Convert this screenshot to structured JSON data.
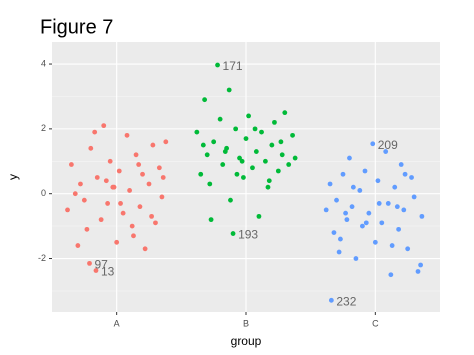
{
  "chart_data": {
    "type": "scatter",
    "title": "Figure 7",
    "xlabel": "group",
    "ylabel": "y",
    "xlim": [
      0.5,
      3.5
    ],
    "ylim": [
      -3.65,
      4.68
    ],
    "xticks": [
      {
        "value": 1,
        "label": "A"
      },
      {
        "value": 2,
        "label": "B"
      },
      {
        "value": 3,
        "label": "C"
      }
    ],
    "yticks": [
      -2,
      0,
      2,
      4
    ],
    "yminor": [
      -3,
      -1,
      1,
      3
    ],
    "grid": true,
    "series": [
      {
        "color": "#F8766D",
        "x": [
          0.62,
          0.65,
          0.7,
          0.72,
          0.75,
          0.79,
          0.84,
          0.8,
          0.85,
          0.88,
          0.9,
          0.93,
          0.95,
          0.98,
          1.0,
          1.02,
          1.05,
          1.08,
          1.1,
          1.12,
          1.15,
          1.18,
          1.2,
          1.22,
          1.25,
          1.28,
          1.3,
          1.33,
          1.35,
          1.38,
          0.68,
          0.77,
          0.92,
          1.03,
          1.17,
          1.27,
          0.83,
          1.13,
          0.97,
          1.36
        ],
        "values": [
          -0.5,
          0.9,
          -1.6,
          0.3,
          -0.2,
          -2.15,
          -2.37,
          1.4,
          0.5,
          -0.8,
          2.1,
          -0.3,
          1.0,
          0.2,
          -1.5,
          0.7,
          -0.6,
          1.8,
          0.1,
          -1.0,
          1.2,
          -0.4,
          0.6,
          -1.7,
          0.3,
          1.5,
          -0.9,
          0.8,
          -0.1,
          1.6,
          0.0,
          -1.1,
          0.4,
          -0.3,
          0.9,
          -0.7,
          1.9,
          -1.3,
          0.2,
          0.5
        ]
      },
      {
        "color": "#00BA38",
        "x": [
          1.78,
          1.9,
          1.62,
          1.65,
          1.68,
          1.7,
          1.72,
          1.75,
          1.8,
          1.82,
          1.85,
          1.88,
          1.92,
          1.95,
          1.98,
          2.0,
          2.02,
          2.05,
          2.08,
          2.1,
          2.12,
          2.15,
          2.18,
          2.2,
          2.22,
          2.25,
          2.28,
          2.3,
          2.33,
          2.36,
          1.67,
          1.73,
          1.87,
          1.97,
          2.07,
          2.17,
          2.27,
          1.84,
          1.93,
          2.38
        ],
        "values": [
          3.97,
          -1.23,
          1.9,
          0.6,
          2.9,
          1.2,
          0.3,
          1.6,
          2.3,
          0.9,
          1.4,
          -0.2,
          2.0,
          1.1,
          0.5,
          1.7,
          2.4,
          0.8,
          1.3,
          -0.7,
          1.9,
          1.0,
          0.4,
          1.5,
          2.2,
          0.7,
          1.2,
          2.5,
          0.9,
          1.8,
          1.5,
          -0.8,
          3.2,
          1.0,
          2.0,
          0.2,
          1.6,
          1.3,
          0.6,
          1.1
        ]
      },
      {
        "color": "#619CFF",
        "x": [
          2.98,
          2.66,
          2.62,
          2.65,
          2.68,
          2.7,
          2.72,
          2.75,
          2.78,
          2.8,
          2.82,
          2.85,
          2.88,
          2.9,
          2.92,
          2.95,
          3.0,
          3.02,
          3.05,
          3.08,
          3.1,
          3.12,
          3.15,
          3.18,
          3.2,
          3.22,
          3.25,
          3.28,
          3.3,
          3.33,
          3.36,
          2.73,
          2.83,
          2.93,
          3.03,
          3.13,
          3.23,
          3.35,
          2.77,
          3.17
        ],
        "values": [
          1.54,
          -3.29,
          -0.5,
          0.3,
          -1.2,
          -0.2,
          -1.8,
          0.6,
          -0.8,
          1.1,
          -0.4,
          -2.0,
          0.1,
          -1.0,
          0.7,
          -0.6,
          -1.5,
          0.4,
          -0.9,
          1.3,
          -0.3,
          -2.5,
          0.2,
          -1.1,
          0.9,
          -0.5,
          -1.7,
          0.5,
          -0.1,
          -2.4,
          -0.7,
          -1.4,
          0.2,
          -0.9,
          -0.3,
          -1.6,
          0.6,
          -2.2,
          -0.6,
          -0.4
        ]
      }
    ],
    "annotations": [
      {
        "text": "171",
        "x": 1.78,
        "y": 3.97
      },
      {
        "text": "193",
        "x": 1.9,
        "y": -1.23
      },
      {
        "text": "209",
        "x": 2.98,
        "y": 1.54
      },
      {
        "text": "232",
        "x": 2.66,
        "y": -3.29
      },
      {
        "text": "97",
        "x": 0.79,
        "y": -2.15
      },
      {
        "text": "13",
        "x": 0.84,
        "y": -2.37
      }
    ]
  }
}
